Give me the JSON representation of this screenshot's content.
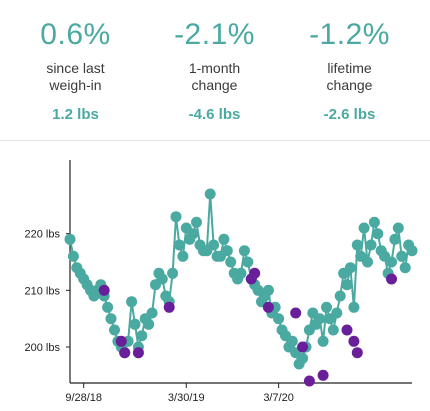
{
  "stats": [
    {
      "percent": "0.6%",
      "label_line1": "since last",
      "label_line2": "weigh-in",
      "lbs": "1.2 lbs"
    },
    {
      "percent": "-2.1%",
      "label_line1": "1-month",
      "label_line2": "change",
      "lbs": "-4.6 lbs"
    },
    {
      "percent": "-1.2%",
      "label_line1": "lifetime",
      "label_line2": "change",
      "lbs": "-2.6 lbs"
    }
  ],
  "colors": {
    "accent": "#4aa9a0",
    "highlight": "#6a1f9a",
    "text": "#3a3a3a"
  },
  "chart_data": {
    "type": "line",
    "title": "",
    "xlabel": "",
    "ylabel": "",
    "ylim": [
      194,
      233
    ],
    "xlim": [
      0,
      100
    ],
    "yticks": [
      200,
      210,
      220
    ],
    "ytick_labels": [
      "200 lbs",
      "210 lbs",
      "220 lbs"
    ],
    "xticks": [
      4,
      34,
      61
    ],
    "xtick_labels": [
      "9/28/18",
      "3/30/19",
      "3/7/20"
    ],
    "grid": false,
    "series": [
      {
        "color": "#4aa9a0",
        "x": [
          0,
          1,
          2,
          3,
          4,
          5,
          6,
          7,
          8,
          9,
          10,
          11,
          12,
          13,
          14,
          15,
          16,
          17,
          18,
          19,
          20,
          21,
          22,
          23,
          24,
          25,
          26,
          27,
          28,
          29,
          30,
          31,
          32,
          33,
          34,
          35,
          36,
          37,
          38,
          39,
          40,
          41,
          42,
          43,
          44,
          45,
          46,
          47,
          48,
          49,
          50,
          51,
          52,
          53,
          54,
          55,
          56,
          57,
          58,
          59,
          60,
          61,
          62,
          63,
          64,
          65,
          66,
          67,
          68,
          69,
          70,
          71,
          72,
          73,
          74,
          75,
          76,
          77,
          78,
          79,
          80,
          81,
          82,
          83,
          84,
          85,
          86,
          87,
          88,
          89,
          90,
          91,
          92,
          93,
          94,
          95,
          96,
          97,
          98,
          99,
          100
        ],
        "values": [
          219,
          216,
          214,
          213,
          212,
          211,
          210,
          209,
          210,
          211,
          209,
          207,
          205,
          203,
          201,
          200,
          199,
          201,
          208,
          204,
          200,
          202,
          205,
          204,
          206,
          211,
          213,
          212,
          209,
          208,
          213,
          223,
          218,
          216,
          221,
          219,
          220,
          222,
          218,
          217,
          217,
          227,
          218,
          216,
          216,
          219,
          217,
          215,
          213,
          212,
          213,
          217,
          215,
          212,
          211,
          210,
          208,
          209,
          210,
          206,
          207,
          205,
          203,
          202,
          200,
          201,
          199,
          197,
          198,
          200,
          203,
          206,
          204,
          205,
          201,
          207,
          205,
          203,
          206,
          209,
          213,
          211,
          214,
          207,
          218,
          216,
          221,
          215,
          218,
          222,
          220,
          217,
          216,
          213,
          215,
          219,
          221,
          216,
          214,
          218,
          217
        ]
      }
    ],
    "highlighted_points": [
      {
        "x": 10,
        "y": 210
      },
      {
        "x": 15,
        "y": 201
      },
      {
        "x": 16,
        "y": 199
      },
      {
        "x": 20,
        "y": 199
      },
      {
        "x": 29,
        "y": 207
      },
      {
        "x": 53,
        "y": 212
      },
      {
        "x": 54,
        "y": 213
      },
      {
        "x": 58,
        "y": 207
      },
      {
        "x": 66,
        "y": 206
      },
      {
        "x": 68,
        "y": 200
      },
      {
        "x": 70,
        "y": 194
      },
      {
        "x": 74,
        "y": 195
      },
      {
        "x": 81,
        "y": 203
      },
      {
        "x": 83,
        "y": 201
      },
      {
        "x": 84,
        "y": 199
      },
      {
        "x": 94,
        "y": 212
      }
    ]
  }
}
